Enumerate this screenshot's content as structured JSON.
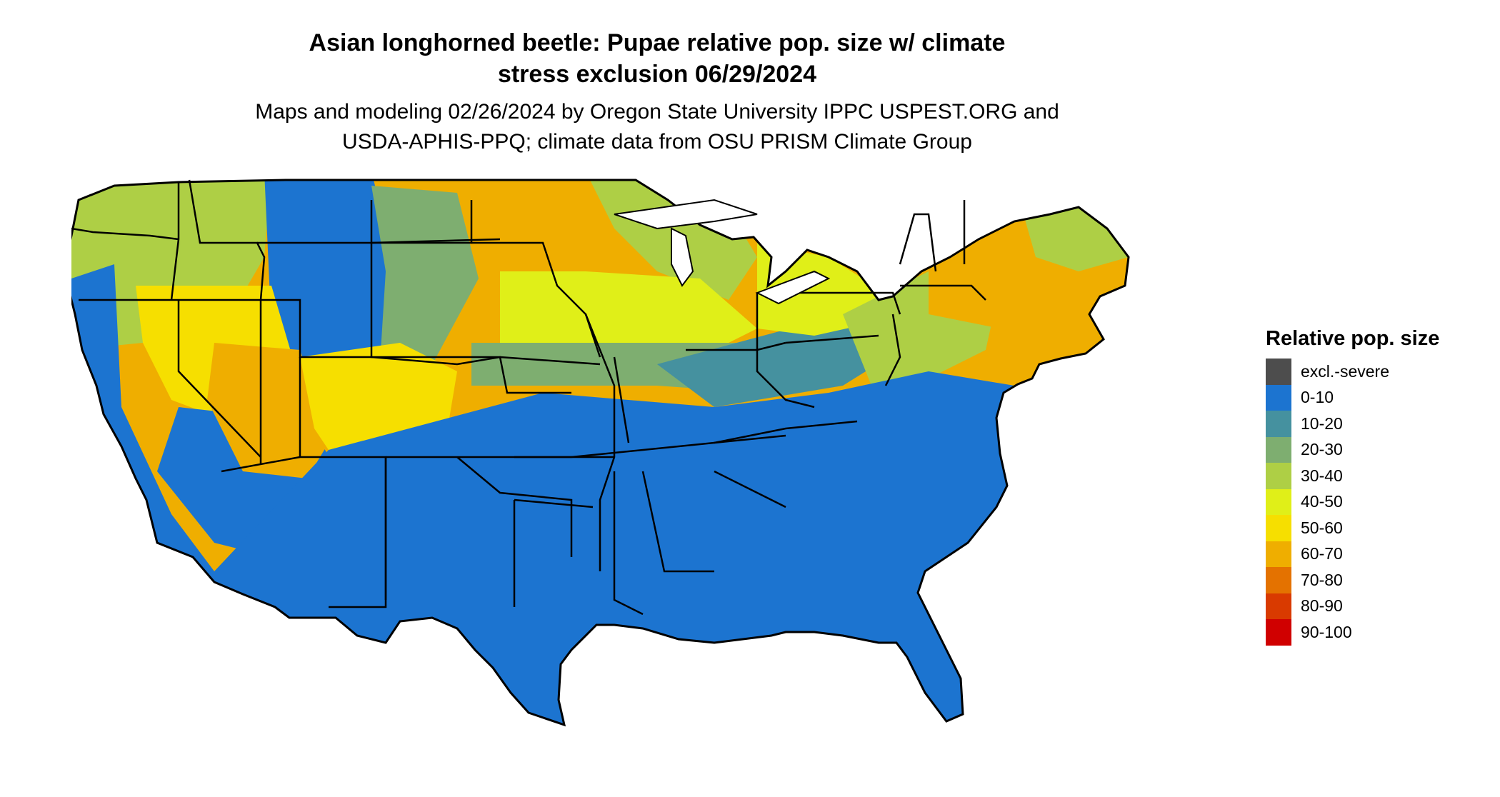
{
  "title": {
    "line1": "Asian longhorned beetle: Pupae relative pop. size w/ climate",
    "line2": "stress exclusion 06/29/2024"
  },
  "subtitle": {
    "line1": "Maps and modeling 02/26/2024 by Oregon State University IPPC USPEST.ORG and",
    "line2": "USDA-APHIS-PPQ; climate data from OSU PRISM Climate Group"
  },
  "legend": {
    "title": "Relative pop. size",
    "items": [
      {
        "label": "excl.-severe",
        "color": "#4d4d4d"
      },
      {
        "label": "0-10",
        "color": "#1c74d0"
      },
      {
        "label": "10-20",
        "color": "#45919f"
      },
      {
        "label": "20-30",
        "color": "#7eae70"
      },
      {
        "label": "30-40",
        "color": "#aecf45"
      },
      {
        "label": "40-50",
        "color": "#e0ef18"
      },
      {
        "label": "50-60",
        "color": "#f6df00"
      },
      {
        "label": "60-70",
        "color": "#efae00"
      },
      {
        "label": "70-80",
        "color": "#e47200"
      },
      {
        "label": "80-90",
        "color": "#d93a00"
      },
      {
        "label": "90-100",
        "color": "#d00000"
      }
    ]
  },
  "map": {
    "region": "Contiguous United States",
    "background_color": "#ffffff",
    "border_color": "#000000"
  }
}
